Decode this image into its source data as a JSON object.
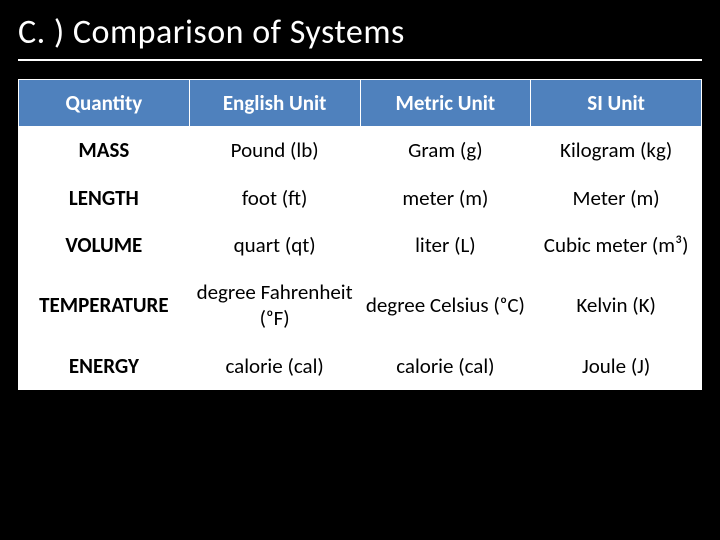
{
  "slide": {
    "title": "C. )  Comparison of Systems",
    "background_color": "#000000",
    "title_color": "#ffffff",
    "title_fontsize": 34,
    "title_underline_color": "#ffffff"
  },
  "table": {
    "type": "table",
    "header_bg": "#4f81bd",
    "header_text_color": "#ffffff",
    "cell_bg": "#ffffff",
    "cell_text_color": "#000000",
    "border_color": "#ffffff",
    "columns": [
      "Quantity",
      "English Unit",
      "Metric Unit",
      "SI Unit"
    ],
    "column_widths_pct": [
      25,
      25,
      25,
      25
    ],
    "header_fontsize": 21,
    "cell_fontsize": 21,
    "rows": [
      {
        "quantity": "MASS",
        "english": "Pound (lb)",
        "metric": "Gram (g)",
        "si": "Kilogram (kg)"
      },
      {
        "quantity": "LENGTH",
        "english": "foot (ft)",
        "metric": "meter (m)",
        "si": "Meter (m)"
      },
      {
        "quantity": "VOLUME",
        "english": "quart (qt)",
        "metric": "liter (L)",
        "si": "Cubic meter (m³)"
      },
      {
        "quantity": "TEMPERATURE",
        "english": "degree Fahrenheit (ᵒF)",
        "metric": "degree Celsius (ᵒC)",
        "si": "Kelvin (K)"
      },
      {
        "quantity": "ENERGY",
        "english": "calorie (cal)",
        "metric": "calorie (cal)",
        "si": "Joule (J)"
      }
    ]
  }
}
